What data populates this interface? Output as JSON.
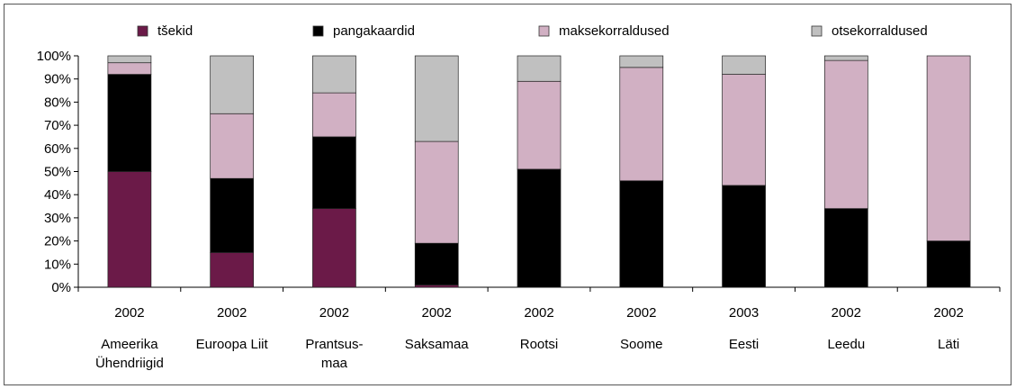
{
  "chart_data": {
    "type": "bar",
    "stacked": true,
    "percent": true,
    "ylim": [
      0,
      100
    ],
    "yticks": [
      "0%",
      "10%",
      "20%",
      "30%",
      "40%",
      "50%",
      "60%",
      "70%",
      "80%",
      "90%",
      "100%"
    ],
    "legend": {
      "placement": "top"
    },
    "categories": [
      {
        "year": "2002",
        "label": [
          "Ameerika",
          "Ühendriigid"
        ]
      },
      {
        "year": "2002",
        "label": [
          "Euroopa Liit"
        ]
      },
      {
        "year": "2002",
        "label": [
          "Prantsus-",
          "maa"
        ]
      },
      {
        "year": "2002",
        "label": [
          "Saksamaa"
        ]
      },
      {
        "year": "2002",
        "label": [
          "Rootsi"
        ]
      },
      {
        "year": "2002",
        "label": [
          "Soome"
        ]
      },
      {
        "year": "2003",
        "label": [
          "Eesti"
        ]
      },
      {
        "year": "2002",
        "label": [
          "Leedu"
        ]
      },
      {
        "year": "2002",
        "label": [
          "Läti"
        ]
      }
    ],
    "series": [
      {
        "name": "tšekid",
        "color": "#6b1a48",
        "values": [
          50,
          15,
          34,
          1,
          0,
          0,
          0,
          0,
          0
        ]
      },
      {
        "name": "pangakaardid",
        "color": "#000000",
        "values": [
          42,
          32,
          31,
          18,
          51,
          46,
          44,
          34,
          20
        ]
      },
      {
        "name": "maksekorraldused",
        "color": "#d1b0c3",
        "values": [
          5,
          28,
          19,
          44,
          38,
          49,
          48,
          64,
          80
        ]
      },
      {
        "name": "otsekorraldused",
        "color": "#c0c0c0",
        "values": [
          3,
          25,
          16,
          37,
          11,
          5,
          8,
          2,
          0
        ]
      }
    ]
  }
}
